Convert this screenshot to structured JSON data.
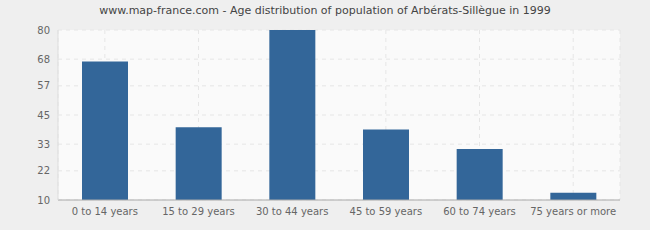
{
  "chart_data": {
    "type": "bar",
    "title": "www.map-france.com - Age distribution of population of Arbérats-Sillègue in 1999",
    "categories": [
      "0 to 14 years",
      "15 to 29 years",
      "30 to 44 years",
      "45 to 59 years",
      "60 to 74 years",
      "75 years or more"
    ],
    "values": [
      67,
      40,
      80,
      39,
      31,
      13
    ],
    "color": "#336699",
    "ylim": [
      10,
      80
    ],
    "yticks": [
      10,
      22,
      33,
      45,
      57,
      68,
      80
    ],
    "grid": true
  }
}
